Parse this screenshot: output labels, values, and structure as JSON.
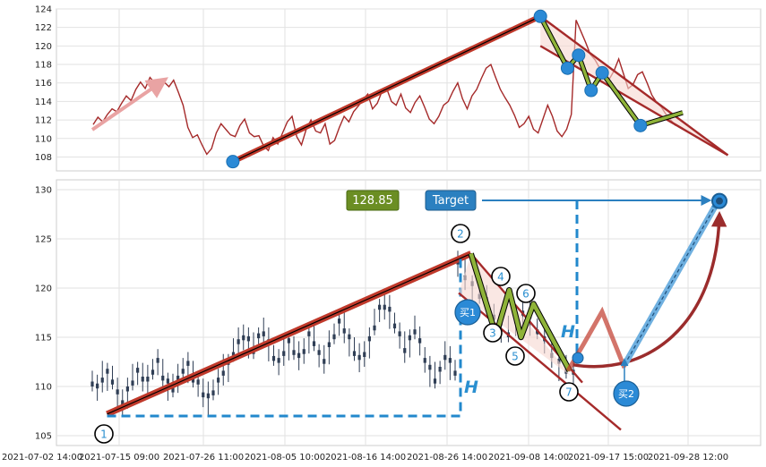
{
  "chart_data": [
    {
      "type": "line",
      "panel": "top",
      "title": "",
      "xlabel": "",
      "ylabel": "",
      "ylim": [
        106.5,
        124
      ],
      "y_ticks": [
        108,
        110,
        112,
        114,
        116,
        118,
        120,
        122,
        124
      ],
      "grid": true,
      "colors": {
        "price": "#a52a2a",
        "trend": "#c0392b",
        "node": "#2b8ad6",
        "zigzag": "#556b2f"
      },
      "price_series": [
        111.5,
        112.3,
        111.8,
        112.6,
        113.2,
        112.9,
        113.8,
        114.6,
        114.1,
        115.3,
        116.1,
        115.4,
        116.6,
        116.0,
        115.2,
        116.1,
        115.6,
        116.3,
        115.0,
        113.6,
        111.2,
        110.1,
        110.4,
        109.3,
        108.3,
        108.9,
        110.6,
        111.6,
        111.0,
        110.4,
        110.2,
        111.4,
        112.1,
        110.6,
        110.2,
        110.3,
        109.2,
        108.7,
        110.1,
        109.4,
        110.6,
        111.8,
        112.4,
        110.2,
        109.3,
        111.0,
        112.0,
        110.8,
        110.6,
        111.6,
        109.4,
        109.8,
        111.2,
        112.4,
        111.8,
        112.9,
        113.5,
        114.2,
        114.8,
        113.2,
        113.8,
        115.1,
        115.4,
        114.0,
        113.6,
        114.8,
        113.3,
        112.8,
        113.9,
        114.6,
        113.4,
        112.1,
        111.6,
        112.4,
        113.6,
        114.0,
        115.1,
        116.0,
        114.3,
        113.2,
        114.6,
        115.3,
        116.5,
        117.6,
        118.0,
        116.6,
        115.3,
        114.4,
        113.6,
        112.5,
        111.2,
        111.6,
        112.4,
        111.0,
        110.6,
        112.1,
        113.6,
        112.4,
        110.8,
        110.2,
        111.0,
        112.6,
        122.8,
        121.6,
        120.4,
        119.1,
        118.5,
        117.6,
        116.8,
        116.4,
        117.3,
        118.6,
        117.0,
        115.4,
        115.8,
        116.9,
        117.2,
        116.0,
        114.7,
        113.9,
        113.4,
        112.6,
        112.0,
        111.4
      ],
      "trend_lines": [
        {
          "from": [
            0.245,
            107.5
          ],
          "to": [
            0.688,
            123.2
          ]
        },
        {
          "from": [
            0.688,
            123.2
          ],
          "to": [
            0.958,
            108.2
          ]
        },
        {
          "from": [
            0.688,
            120.0
          ],
          "to": [
            0.958,
            108.2
          ]
        }
      ],
      "pivots": [
        {
          "x": 0.245,
          "y": 107.5
        },
        {
          "x": 0.688,
          "y": 123.2
        },
        {
          "x": 0.727,
          "y": 117.6
        },
        {
          "x": 0.743,
          "y": 119.0
        },
        {
          "x": 0.761,
          "y": 115.2
        },
        {
          "x": 0.777,
          "y": 117.1
        },
        {
          "x": 0.832,
          "y": 111.4
        }
      ]
    },
    {
      "type": "line",
      "panel": "bottom",
      "title": "",
      "xlabel": "",
      "ylabel": "",
      "ylim": [
        104,
        131
      ],
      "y_ticks": [
        105,
        110,
        115,
        120,
        125,
        130
      ],
      "x_tick_labels": [
        "2021-07-02 14:00",
        "2021-07-15 09:00",
        "2021-07-26 11:00",
        "2021-08-05 10:00",
        "2021-08-16 14:00",
        "2021-08-26 14:00",
        "2021-09-08 14:00",
        "2021-09-17 15:00",
        "2021-09-28 12:00"
      ],
      "grid": true,
      "colors": {
        "candles": "#2f3e55",
        "trend": "#c0392b",
        "dashed": "#2288cc",
        "target_arrow": "#2b80c0",
        "price_box": "#6b8e23",
        "target_box": "#2b80c0",
        "curve": "#9b2c2c"
      },
      "candle_closes": [
        110.5,
        109.8,
        110.9,
        111.3,
        110.7,
        109.2,
        108.6,
        109.5,
        110.6,
        111.4,
        111.0,
        110.5,
        111.7,
        112.4,
        111.1,
        110.3,
        109.9,
        110.6,
        111.8,
        112.1,
        110.9,
        110.2,
        109.4,
        108.8,
        109.6,
        110.4,
        111.6,
        112.2,
        113.5,
        114.3,
        115.2,
        114.6,
        113.8,
        114.9,
        115.6,
        114.3,
        113.1,
        112.4,
        113.6,
        114.4,
        113.7,
        112.9,
        113.8,
        115.1,
        114.6,
        113.2,
        112.8,
        114.0,
        115.3,
        116.4,
        115.9,
        114.8,
        113.6,
        112.7,
        113.5,
        114.6,
        116.2,
        117.8,
        118.3,
        117.6,
        116.4,
        115.1,
        113.9,
        114.7,
        115.8,
        114.4,
        112.9,
        111.7,
        110.8,
        111.5,
        113.2,
        112.4,
        111.6,
        122.4,
        121.3,
        120.2,
        119.4,
        118.6,
        117.3,
        116.2,
        115.5,
        116.4,
        117.7,
        116.9,
        115.8,
        114.6,
        113.4,
        112.3,
        111.8,
        111.2
      ],
      "price_label": "128.85",
      "target_label": "Target",
      "h_label": "H",
      "buy_labels": [
        "买1",
        "买2"
      ],
      "point_labels": [
        "1",
        "2",
        "3",
        "4",
        "5",
        "6",
        "7"
      ],
      "points": [
        {
          "label": "1",
          "x": 0.06,
          "y": 107.2
        },
        {
          "label": "2",
          "x": 0.588,
          "y": 123.5
        },
        {
          "label": "3",
          "x": 0.624,
          "y": 115.2
        },
        {
          "label": "4",
          "x": 0.643,
          "y": 119.8
        },
        {
          "label": "5",
          "x": 0.66,
          "y": 115.0
        },
        {
          "label": "6",
          "x": 0.678,
          "y": 118.4
        },
        {
          "label": "7",
          "x": 0.73,
          "y": 111.6
        }
      ],
      "target_value": 128.85
    }
  ]
}
